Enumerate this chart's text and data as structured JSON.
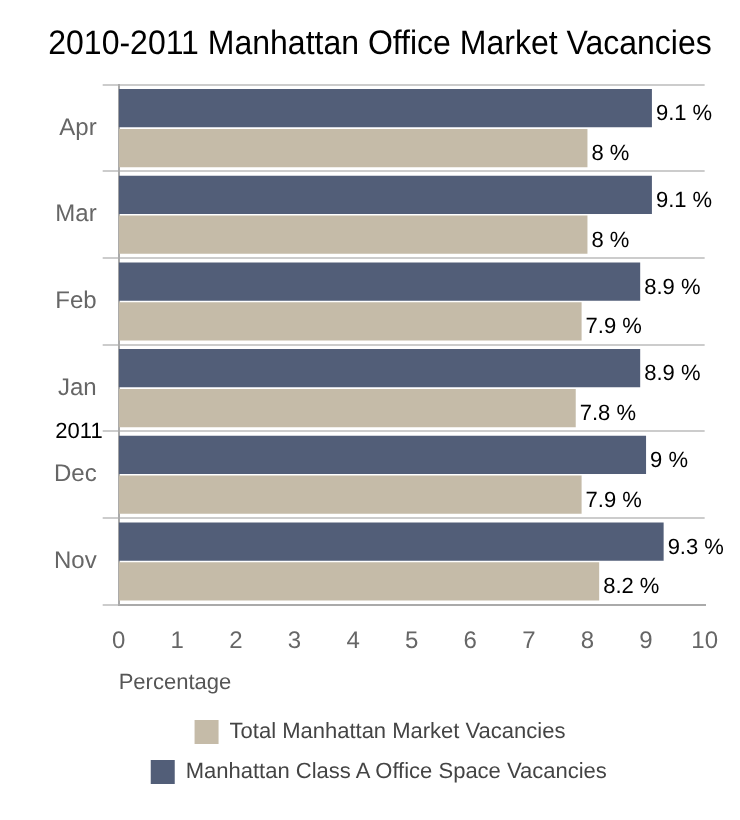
{
  "chart_data": {
    "type": "bar",
    "orientation": "horizontal",
    "title": "2010-2011 Manhattan Office Market Vacancies",
    "xlabel": "Percentage",
    "categories": [
      "Apr",
      "Mar",
      "Feb",
      "Jan",
      "Dec",
      "Nov"
    ],
    "series": [
      {
        "name": "Manhattan Class A Office Space Vacancies",
        "color": "#525e78",
        "values": [
          9.1,
          9.1,
          8.9,
          8.9,
          9,
          9.3
        ],
        "value_labels": [
          "9.1 %",
          "9.1 %",
          "8.9 %",
          "8.9 %",
          "9 %",
          "9.3 %"
        ]
      },
      {
        "name": "Total Manhattan Market Vacancies",
        "color": "#c5bba8",
        "values": [
          8,
          8,
          7.9,
          7.8,
          7.9,
          8.2
        ],
        "value_labels": [
          "8 %",
          "8 %",
          "7.9 %",
          "7.8 %",
          "7.9 %",
          "8.2 %"
        ]
      }
    ],
    "xlim": [
      0,
      10
    ],
    "xticks": [
      0,
      1,
      2,
      3,
      4,
      5,
      6,
      7,
      8,
      9,
      10
    ],
    "grid": "y",
    "legend": "bottom",
    "annotations": [
      "2011"
    ]
  }
}
